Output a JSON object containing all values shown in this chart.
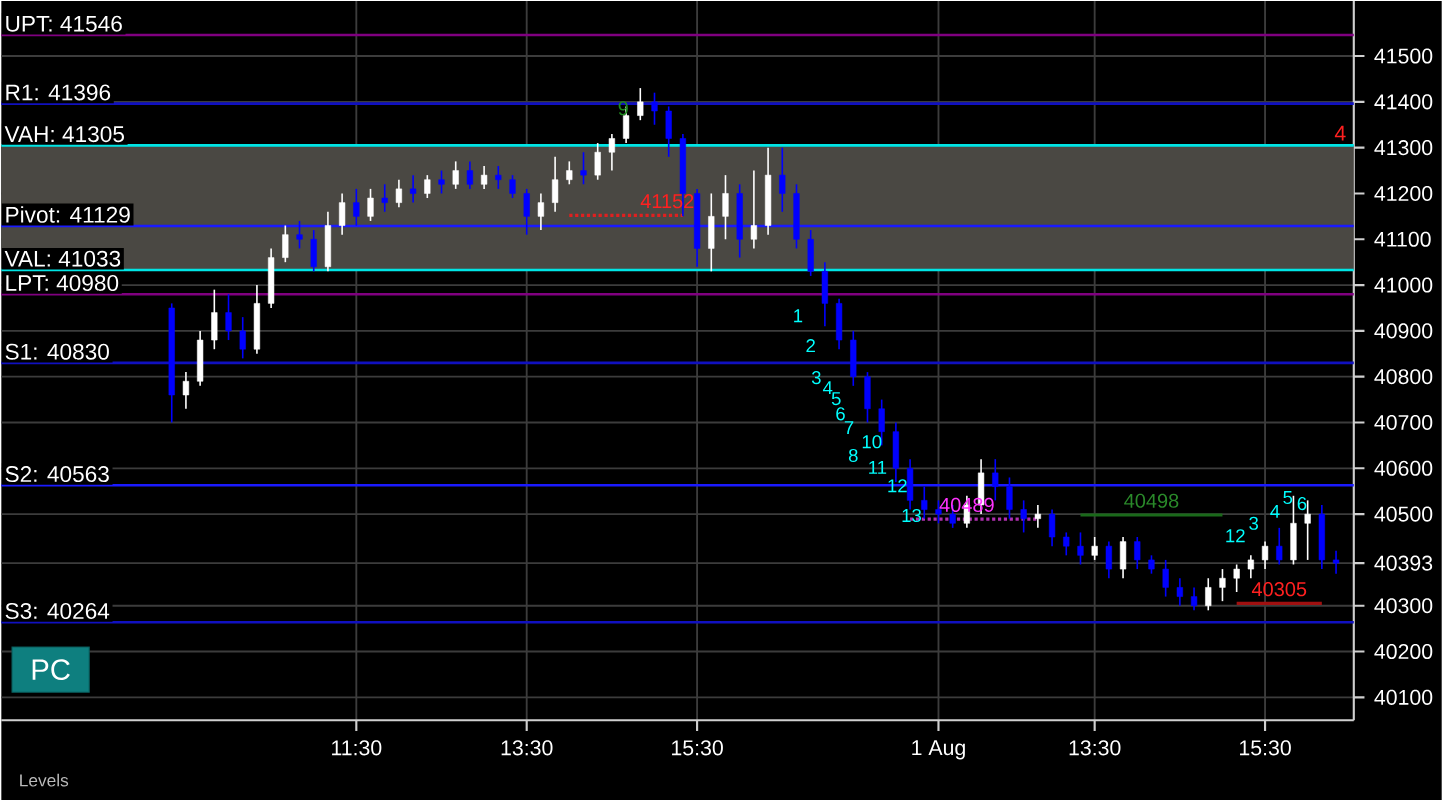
{
  "chart_data": {
    "type": "candlestick",
    "categories": [
      null,
      null,
      null,
      null,
      null,
      null,
      null,
      null,
      null,
      null,
      null,
      null,
      null,
      "11:30",
      null,
      null,
      null,
      null,
      null,
      null,
      null,
      null,
      null,
      null,
      null,
      "13:30",
      null,
      null,
      null,
      null,
      null,
      null,
      null,
      null,
      null,
      null,
      null,
      "15:30",
      null,
      null,
      null,
      null,
      null,
      null,
      null,
      null,
      null,
      null,
      null,
      null,
      null,
      null,
      null,
      null,
      "1 Aug",
      null,
      null,
      null,
      null,
      null,
      null,
      null,
      null,
      null,
      null,
      "13:30",
      null,
      null,
      null,
      null,
      null,
      null,
      null,
      null,
      null,
      null,
      null,
      "15:30",
      null,
      null,
      null,
      null,
      null
    ],
    "ohlc": [
      [
        40950,
        40960,
        40700,
        40760
      ],
      [
        40760,
        40810,
        40730,
        40790
      ],
      [
        40790,
        40900,
        40780,
        40880
      ],
      [
        40880,
        40990,
        40860,
        40940
      ],
      [
        40940,
        40980,
        40880,
        40900
      ],
      [
        40900,
        40930,
        40840,
        40860
      ],
      [
        40860,
        41000,
        40850,
        40960
      ],
      [
        40960,
        41080,
        40950,
        41060
      ],
      [
        41060,
        41130,
        41050,
        41110
      ],
      [
        41110,
        41140,
        41080,
        41100
      ],
      [
        41100,
        41120,
        41030,
        41040
      ],
      [
        41040,
        41160,
        41030,
        41130
      ],
      [
        41130,
        41200,
        41110,
        41180
      ],
      [
        41180,
        41210,
        41130,
        41150
      ],
      [
        41150,
        41210,
        41140,
        41190
      ],
      [
        41190,
        41220,
        41160,
        41180
      ],
      [
        41180,
        41230,
        41170,
        41210
      ],
      [
        41210,
        41240,
        41180,
        41200
      ],
      [
        41200,
        41240,
        41190,
        41230
      ],
      [
        41230,
        41250,
        41200,
        41220
      ],
      [
        41220,
        41270,
        41210,
        41250
      ],
      [
        41250,
        41270,
        41210,
        41220
      ],
      [
        41220,
        41260,
        41210,
        41240
      ],
      [
        41240,
        41260,
        41210,
        41230
      ],
      [
        41230,
        41240,
        41190,
        41200
      ],
      [
        41200,
        41210,
        41110,
        41150
      ],
      [
        41150,
        41200,
        41120,
        41180
      ],
      [
        41180,
        41280,
        41160,
        41230
      ],
      [
        41230,
        41270,
        41220,
        41250
      ],
      [
        41250,
        41290,
        41220,
        41240
      ],
      [
        41240,
        41310,
        41230,
        41290
      ],
      [
        41290,
        41330,
        41250,
        41320
      ],
      [
        41320,
        41390,
        41310,
        41370
      ],
      [
        41370,
        41430,
        41360,
        41400
      ],
      [
        41400,
        41420,
        41350,
        41380
      ],
      [
        41380,
        41390,
        41280,
        41320
      ],
      [
        41320,
        41330,
        41150,
        41200
      ],
      [
        41200,
        41210,
        41040,
        41080
      ],
      [
        41080,
        41200,
        41030,
        41150
      ],
      [
        41150,
        41240,
        41100,
        41200
      ],
      [
        41200,
        41220,
        41060,
        41100
      ],
      [
        41100,
        41250,
        41080,
        41130
      ],
      [
        41130,
        41300,
        41110,
        41240
      ],
      [
        41240,
        41300,
        41160,
        41200
      ],
      [
        41200,
        41220,
        41080,
        41100
      ],
      [
        41100,
        41120,
        41020,
        41030
      ],
      [
        41030,
        41050,
        40910,
        40960
      ],
      [
        40960,
        40970,
        40860,
        40880
      ],
      [
        40880,
        40900,
        40780,
        40800
      ],
      [
        40800,
        40810,
        40700,
        40730
      ],
      [
        40730,
        40750,
        40650,
        40680
      ],
      [
        40680,
        40700,
        40570,
        40600
      ],
      [
        40600,
        40620,
        40510,
        40530
      ],
      [
        40530,
        40560,
        40490,
        40510
      ],
      [
        40510,
        40530,
        40480,
        40500
      ],
      [
        40500,
        40520,
        40470,
        40480
      ],
      [
        40480,
        40540,
        40470,
        40520
      ],
      [
        40520,
        40620,
        40500,
        40590
      ],
      [
        40590,
        40620,
        40530,
        40560
      ],
      [
        40560,
        40580,
        40490,
        40510
      ],
      [
        40510,
        40530,
        40460,
        40490
      ],
      [
        40490,
        40520,
        40470,
        40500
      ],
      [
        40500,
        40510,
        40430,
        40450
      ],
      [
        40450,
        40460,
        40410,
        40430
      ],
      [
        40430,
        40460,
        40390,
        40410
      ],
      [
        40410,
        40450,
        40400,
        40430
      ],
      [
        40430,
        40440,
        40360,
        40380
      ],
      [
        40380,
        40450,
        40360,
        40440
      ],
      [
        40440,
        40450,
        40380,
        40400
      ],
      [
        40400,
        40410,
        40370,
        40380
      ],
      [
        40380,
        40400,
        40320,
        40340
      ],
      [
        40340,
        40360,
        40300,
        40320
      ],
      [
        40320,
        40340,
        40290,
        40300
      ],
      [
        40300,
        40360,
        40290,
        40340
      ],
      [
        40340,
        40380,
        40310,
        40360
      ],
      [
        40360,
        40390,
        40330,
        40380
      ],
      [
        40380,
        40410,
        40360,
        40400
      ],
      [
        40400,
        40440,
        40380,
        40430
      ],
      [
        40430,
        40470,
        40390,
        40400
      ],
      [
        40400,
        40540,
        40390,
        40480
      ],
      [
        40480,
        40530,
        40400,
        40500
      ],
      [
        40500,
        40520,
        40380,
        40400
      ],
      [
        40400,
        40420,
        40370,
        40393
      ]
    ],
    "colors": [
      "#0000ff",
      "#ffffff",
      "#ffffff",
      "#ffffff",
      "#0000ff",
      "#0000ff",
      "#ffffff",
      "#ffffff",
      "#ffffff",
      "#0000ff",
      "#0000ff",
      "#ffffff",
      "#ffffff",
      "#0000ff",
      "#ffffff",
      "#0000ff",
      "#ffffff",
      "#0000ff",
      "#ffffff",
      "#0000ff",
      "#ffffff",
      "#0000ff",
      "#ffffff",
      "#0000ff",
      "#0000ff",
      "#0000ff",
      "#ffffff",
      "#ffffff",
      "#ffffff",
      "#0000ff",
      "#ffffff",
      "#ffffff",
      "#ffffff",
      "#ffffff",
      "#0000ff",
      "#0000ff",
      "#0000ff",
      "#0000ff",
      "#ffffff",
      "#ffffff",
      "#0000ff",
      "#ffffff",
      "#ffffff",
      "#0000ff",
      "#0000ff",
      "#0000ff",
      "#0000ff",
      "#0000ff",
      "#0000ff",
      "#0000ff",
      "#0000ff",
      "#0000ff",
      "#0000ff",
      "#0000ff",
      "#0000ff",
      "#0000ff",
      "#ffffff",
      "#ffffff",
      "#0000ff",
      "#0000ff",
      "#0000ff",
      "#ffffff",
      "#0000ff",
      "#0000ff",
      "#0000ff",
      "#ffffff",
      "#0000ff",
      "#ffffff",
      "#0000ff",
      "#0000ff",
      "#0000ff",
      "#0000ff",
      "#0000ff",
      "#ffffff",
      "#ffffff",
      "#ffffff",
      "#ffffff",
      "#ffffff",
      "#0000ff",
      "#ffffff",
      "#ffffff",
      "#0000ff",
      "#0000ff"
    ],
    "series": [
      {
        "type": "line",
        "color": "#e02020",
        "line_style": "dotted",
        "values": [
          null,
          null,
          null,
          null,
          null,
          null,
          null,
          null,
          null,
          null,
          null,
          null,
          null,
          null,
          null,
          null,
          null,
          null,
          null,
          null,
          null,
          null,
          null,
          null,
          null,
          null,
          null,
          null,
          41152,
          41152,
          41152,
          41152,
          41152,
          41152,
          41152,
          41152,
          41152,
          null,
          null,
          null,
          null,
          null,
          null,
          null,
          null,
          null,
          null,
          null,
          null,
          null,
          null,
          null,
          null,
          null,
          null,
          null,
          null,
          null,
          null,
          null,
          null,
          null,
          null,
          null,
          null,
          null,
          null,
          null,
          null,
          null,
          null,
          null,
          null,
          null,
          null,
          null,
          null,
          null,
          null,
          null,
          null,
          null,
          null
        ]
      },
      {
        "type": "line",
        "color": "#b030b0",
        "line_style": "dotted",
        "values": [
          null,
          null,
          null,
          null,
          null,
          null,
          null,
          null,
          null,
          null,
          null,
          null,
          null,
          null,
          null,
          null,
          null,
          null,
          null,
          null,
          null,
          null,
          null,
          null,
          null,
          null,
          null,
          null,
          null,
          null,
          null,
          null,
          null,
          null,
          null,
          null,
          null,
          null,
          null,
          null,
          null,
          null,
          null,
          null,
          null,
          null,
          null,
          null,
          null,
          null,
          null,
          null,
          40489,
          40489,
          40489,
          40489,
          40489,
          40489,
          40489,
          40489,
          40489,
          40489,
          null,
          null,
          null,
          null,
          null,
          null,
          null,
          null,
          null,
          null,
          null,
          null,
          null,
          null,
          null,
          null,
          null,
          null,
          null,
          null,
          null
        ]
      },
      {
        "type": "line",
        "color": "#1a6a1a",
        "line_style": "solid",
        "values": [
          null,
          null,
          null,
          null,
          null,
          null,
          null,
          null,
          null,
          null,
          null,
          null,
          null,
          null,
          null,
          null,
          null,
          null,
          null,
          null,
          null,
          null,
          null,
          null,
          null,
          null,
          null,
          null,
          null,
          null,
          null,
          null,
          null,
          null,
          null,
          null,
          null,
          null,
          null,
          null,
          null,
          null,
          null,
          null,
          null,
          null,
          null,
          null,
          null,
          null,
          null,
          null,
          null,
          null,
          null,
          null,
          null,
          null,
          null,
          null,
          null,
          null,
          null,
          null,
          40498,
          40498,
          40498,
          40498,
          40498,
          40498,
          40498,
          40498,
          40498,
          40498,
          40498,
          null,
          null,
          null,
          null,
          null,
          null,
          null,
          null
        ]
      },
      {
        "type": "line",
        "color": "#a01010",
        "line_style": "solid",
        "values": [
          null,
          null,
          null,
          null,
          null,
          null,
          null,
          null,
          null,
          null,
          null,
          null,
          null,
          null,
          null,
          null,
          null,
          null,
          null,
          null,
          null,
          null,
          null,
          null,
          null,
          null,
          null,
          null,
          null,
          null,
          null,
          null,
          null,
          null,
          null,
          null,
          null,
          null,
          null,
          null,
          null,
          null,
          null,
          null,
          null,
          null,
          null,
          null,
          null,
          null,
          null,
          null,
          null,
          null,
          null,
          null,
          null,
          null,
          null,
          null,
          null,
          null,
          null,
          null,
          null,
          null,
          null,
          null,
          null,
          null,
          null,
          null,
          null,
          null,
          null,
          40305,
          40305,
          40305,
          40305,
          40305,
          40305,
          40305,
          null
        ]
      }
    ],
    "ylim": [
      40050,
      41620
    ],
    "yticks": [
      40100,
      40200,
      40300,
      {
        "value": 40393,
        "label": "40393"
      },
      40500,
      40600,
      40700,
      40800,
      40900,
      41000,
      41100,
      41200,
      41300,
      41400,
      41500
    ],
    "grid": true,
    "ref_lines": [
      {
        "axis": "y",
        "value": 41546,
        "label": "UPT: 41546",
        "color": "#800080"
      },
      {
        "axis": "y",
        "value": 41396,
        "label": "R1: 41396",
        "color": "#1010c0"
      },
      {
        "axis": "y",
        "value": 41305,
        "label": "VAH: 41305",
        "color": "#00e5e5"
      },
      {
        "axis": "y",
        "value": 41129,
        "label": "Pivot: 41129",
        "color": "#1a1aff"
      },
      {
        "axis": "y",
        "value": 41033,
        "label": "VAL: 41033",
        "color": "#00e5e5"
      },
      {
        "axis": "y",
        "value": 40980,
        "label": "LPT: 40980",
        "color": "#800080"
      },
      {
        "axis": "y",
        "value": 40830,
        "label": "S1: 40830",
        "color": "#1010c0"
      },
      {
        "axis": "y",
        "value": 40563,
        "label": "S2: 40563",
        "color": "#1a1aff"
      },
      {
        "axis": "y",
        "value": 40264,
        "label": "S3: 40264",
        "color": "#1010c0"
      }
    ],
    "bands": [
      {
        "axis": "y",
        "from": 41033,
        "to": 41305,
        "color": "#4a4843"
      }
    ],
    "annotations": [
      "PC",
      "Levels",
      {
        "text": "41152",
        "y": 41152
      },
      {
        "text": "4",
        "y": 41300
      },
      {
        "text": "9",
        "y": 41386
      },
      "1",
      "2",
      "3",
      "4",
      "5",
      "6",
      "7",
      "8",
      "10",
      "11",
      "12",
      "13",
      "12",
      "3",
      "4",
      "5",
      "6",
      {
        "text": "40489",
        "y": 40489
      },
      {
        "text": "40498",
        "y": 40498
      },
      {
        "text": "40305",
        "y": 40305
      }
    ]
  }
}
